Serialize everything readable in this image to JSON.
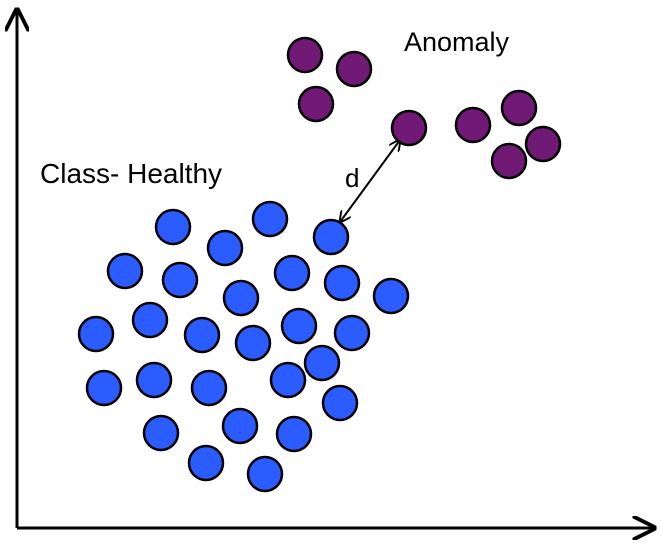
{
  "labels": {
    "anomaly": "Anomaly",
    "healthy": "Class- Healthy",
    "distance": "d"
  },
  "colors": {
    "healthy_fill": "#2b5cff",
    "anomaly_fill": "#701a75",
    "stroke": "#000000",
    "background": "#ffffff"
  }
}
